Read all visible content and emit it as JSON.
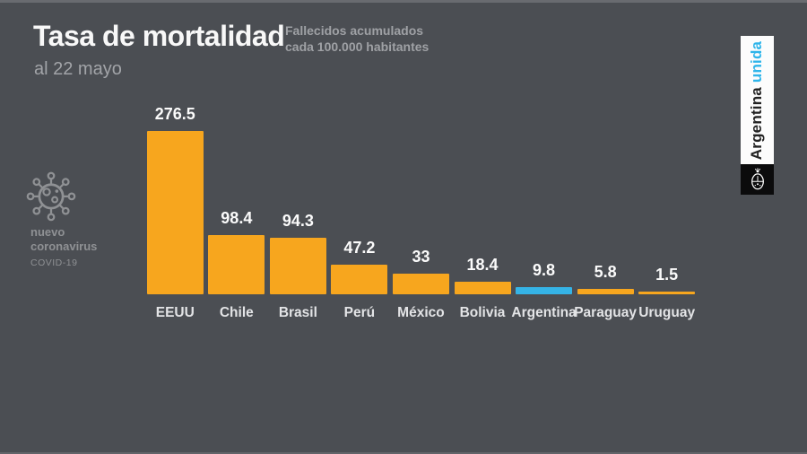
{
  "slide": {
    "title": "Tasa de mortalidad",
    "date_note": "al 22 mayo",
    "subtitle_line1": "Fallecidos acumulados",
    "subtitle_line2": "cada 100.000 habitantes"
  },
  "badge": {
    "icon": "coronavirus-icon",
    "label_line1": "nuevo",
    "label_line2": "coronavirus",
    "sublabel": "COVID-19"
  },
  "brand": {
    "name": "Argentina",
    "name_accent": "unida",
    "accent_color": "#2FB5EA",
    "emblem_icon": "argentina-coat-of-arms-icon"
  },
  "colors": {
    "background": "#4B4E53",
    "title_text": "#F8F8F8",
    "muted_text": "#A2A4A8",
    "badge_text": "#8F9194",
    "value_label": "#FBFBFB",
    "category_label": "#E3E4E6"
  },
  "chart_data": {
    "type": "bar",
    "title": "Tasa de mortalidad",
    "subtitle": "Fallecidos acumulados cada 100.000 habitantes",
    "categories": [
      "EEUU",
      "Chile",
      "Brasil",
      "Perú",
      "México",
      "Bolivia",
      "Argentina",
      "Paraguay",
      "Uruguay"
    ],
    "values": [
      276.5,
      98.4,
      94.3,
      47.2,
      33,
      18.4,
      9.8,
      5.8,
      1.5
    ],
    "value_labels": [
      "276.5",
      "98.4",
      "94.3",
      "47.2",
      "33",
      "18.4",
      "9.8",
      "5.8",
      "1.5"
    ],
    "highlight_index": 6,
    "bar_color": "#F7A61E",
    "highlight_color": "#35B3E6",
    "ylim": [
      0,
      300
    ],
    "grid": false,
    "legend": false
  }
}
